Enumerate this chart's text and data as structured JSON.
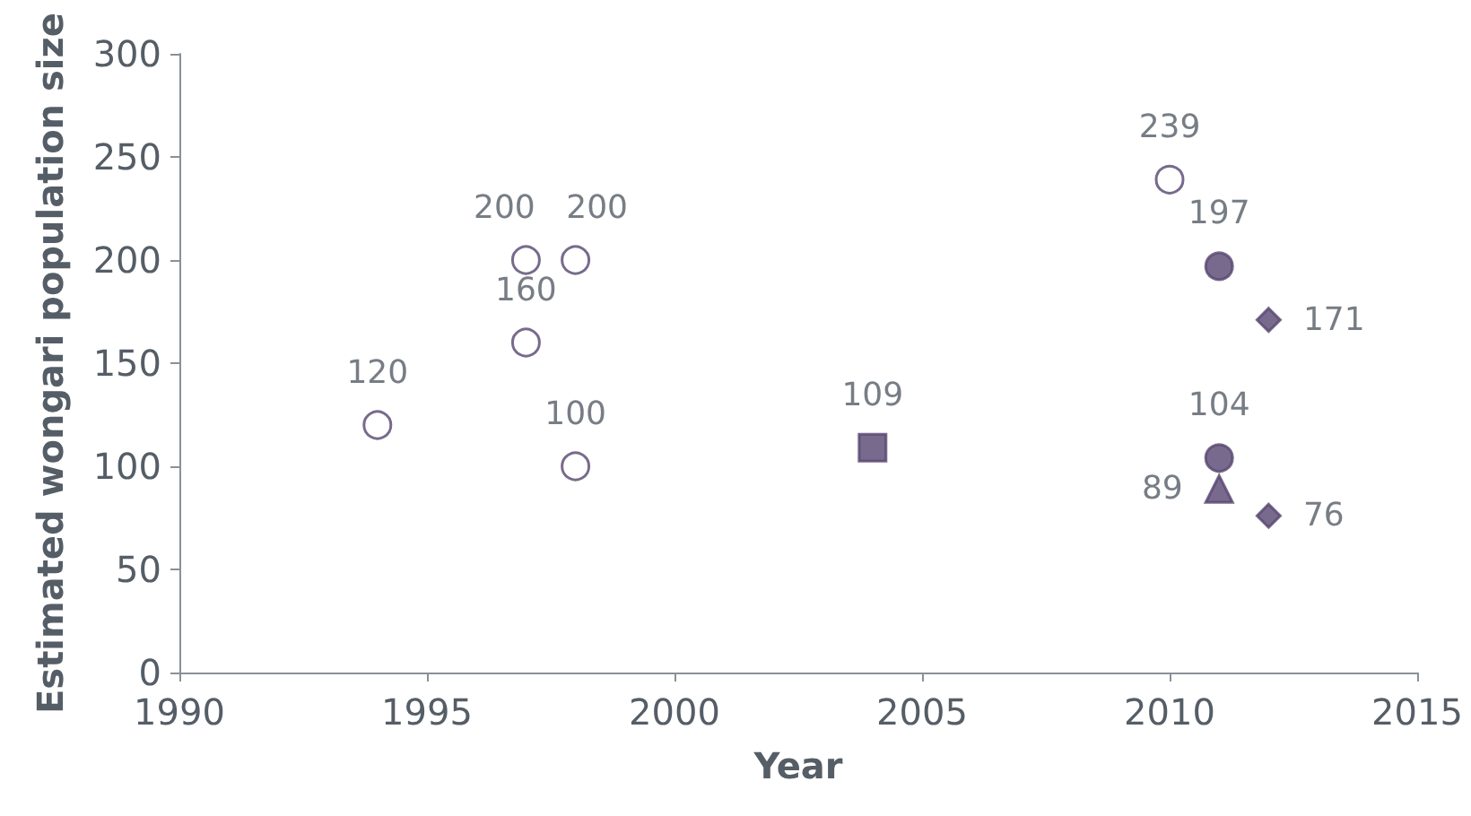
{
  "chart_data": {
    "type": "scatter",
    "xlabel": "Year",
    "ylabel": "Estimated wongari population size",
    "xlim": [
      1990,
      2015
    ],
    "xticks": [
      1990,
      1995,
      2000,
      2005,
      2010,
      2015
    ],
    "ylim": [
      0,
      300
    ],
    "yticks": [
      0,
      50,
      100,
      150,
      200,
      250,
      300
    ],
    "grid": false,
    "data_labels": true,
    "series": [
      {
        "color": "#ffffff",
        "marker": "circle",
        "x": [
          1994,
          1997,
          1998,
          1997,
          1998,
          2010
        ],
        "values": [
          120,
          200,
          200,
          160,
          100,
          239
        ]
      },
      {
        "color": "#56456f",
        "marker": "square",
        "x": [
          2004
        ],
        "values": [
          109
        ]
      },
      {
        "color": "#56456f",
        "marker": "circle",
        "x": [
          2011,
          2011
        ],
        "values": [
          197,
          104
        ]
      },
      {
        "color": "#56456f",
        "marker": "triangle",
        "x": [
          2011
        ],
        "values": [
          89
        ]
      },
      {
        "color": "#56456f",
        "marker": "diamond",
        "x": [
          2012,
          2012
        ],
        "values": [
          171,
          76
        ]
      }
    ]
  }
}
